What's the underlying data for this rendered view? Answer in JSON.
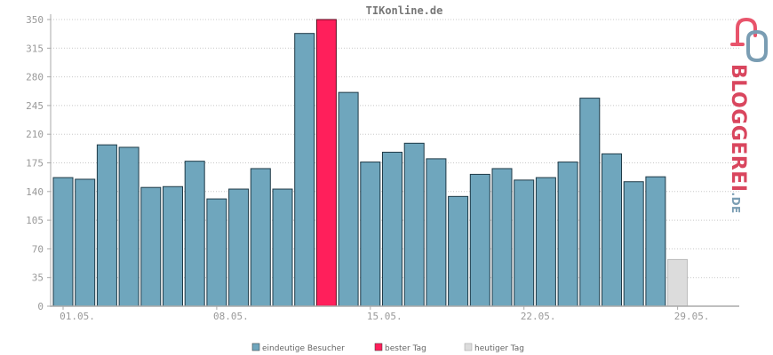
{
  "chart_data": {
    "type": "bar",
    "title": "TIKonline.de",
    "ylim": [
      0,
      350
    ],
    "yticks": [
      0,
      35,
      70,
      105,
      140,
      175,
      210,
      245,
      280,
      315,
      350
    ],
    "x_tick_labels": [
      "01.05.",
      "08.05.",
      "15.05.",
      "22.05.",
      "29.05."
    ],
    "grid": true,
    "legend_position": "bottom",
    "values": [
      157,
      155,
      197,
      194,
      145,
      146,
      177,
      131,
      143,
      168,
      143,
      333,
      350,
      261,
      176,
      188,
      199,
      180,
      134,
      161,
      168,
      154,
      157,
      176,
      254,
      186,
      152,
      158,
      57
    ],
    "highlight_index": 12,
    "today_index": 28,
    "colors": {
      "normal": "#6fa6bd",
      "best": "#ff1f5b",
      "today": "#dcdcdc"
    },
    "legend": [
      "eindeutige Besucher",
      "bester Tag",
      "heutiger Tag"
    ]
  },
  "brand": {
    "name": "BLOGGEREI",
    "suffix": ".DE"
  }
}
